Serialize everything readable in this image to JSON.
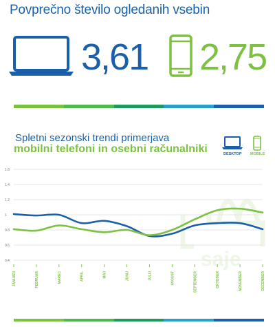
{
  "header": {
    "title": "Povprečno število ogledanih vsebin",
    "desktop_value": "3,61",
    "mobile_value": "2,75"
  },
  "colors": {
    "desktop": "#1b5fa8",
    "mobile": "#7dc142",
    "stripe": [
      "#7dc142",
      "#4fb84e",
      "#1f9a5a",
      "#2aa0c8",
      "#1b5fa8"
    ]
  },
  "icons": {
    "desktop": "laptop-icon",
    "mobile": "smartphone-icon",
    "watermark": "saje-logo"
  },
  "section": {
    "subtitle_line1": "Spletni sezonski trendi primerjava",
    "subtitle_line2": "mobilni telefoni in osebni računalniki"
  },
  "legend": {
    "desktop": "DESKTOP",
    "mobile": "MOBILE"
  },
  "chart_data": {
    "type": "line",
    "categories": [
      "JANUARI",
      "FEBRUAR",
      "MAREC",
      "APRIL",
      "MAJ",
      "JUNIJ",
      "JULIJ",
      "AVGUST",
      "SEPTEMBER",
      "OKTOBER",
      "NOVEMBER",
      "DECEMBER"
    ],
    "series": [
      {
        "name": "DESKTOP",
        "color": "#1b5fa8",
        "values": [
          1.01,
          0.99,
          1.0,
          0.89,
          0.92,
          0.85,
          0.72,
          0.75,
          0.86,
          0.89,
          0.89,
          0.81
        ]
      },
      {
        "name": "MOBILE",
        "color": "#7dc142",
        "values": [
          0.81,
          0.79,
          0.86,
          0.81,
          0.77,
          0.8,
          0.73,
          0.8,
          0.94,
          1.06,
          1.08,
          1.03
        ]
      }
    ],
    "yticks": [
      "1.6",
      "1.4",
      "1.2",
      "1",
      "0.8",
      "0.6",
      "0.4"
    ],
    "ylim": [
      0.4,
      1.6
    ],
    "grid": true
  }
}
